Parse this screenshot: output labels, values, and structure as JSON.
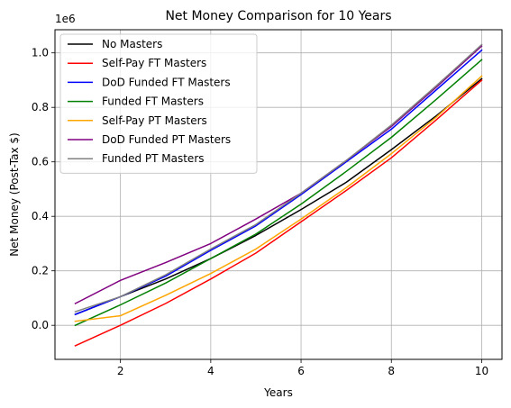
{
  "chart_data": {
    "type": "line",
    "title": "Net Money Comparison for 10 Years",
    "xlabel": "Years",
    "ylabel": "Net Money (Post-Tax $)",
    "y_offset_label": "1e6",
    "xlim": [
      0.55,
      10.45
    ],
    "ylim": [
      -0.125,
      1.085
    ],
    "x_scale": 1000000,
    "xticks": [
      2,
      4,
      6,
      8,
      10
    ],
    "xtick_labels": [
      "2",
      "4",
      "6",
      "8",
      "10"
    ],
    "yticks": [
      0.0,
      0.2,
      0.4,
      0.6,
      0.8,
      1.0
    ],
    "ytick_labels": [
      "0.0",
      "0.2",
      "0.4",
      "0.6",
      "0.8",
      "1.0"
    ],
    "grid": true,
    "legend_position": "upper-left",
    "x": [
      1,
      2,
      3,
      4,
      5,
      6,
      7,
      8,
      9,
      10
    ],
    "series": [
      {
        "name": "No Masters",
        "color": "#000000",
        "values": [
          0.04,
          0.105,
          0.17,
          0.245,
          0.33,
          0.425,
          0.525,
          0.645,
          0.77,
          0.905
        ]
      },
      {
        "name": "Self-Pay FT Masters",
        "color": "#ff0000",
        "values": [
          -0.075,
          0.0,
          0.08,
          0.17,
          0.265,
          0.38,
          0.495,
          0.615,
          0.755,
          0.9
        ]
      },
      {
        "name": "DoD Funded FT Masters",
        "color": "#0000ff",
        "values": [
          0.04,
          0.105,
          0.18,
          0.275,
          0.365,
          0.48,
          0.6,
          0.72,
          0.865,
          1.01
        ]
      },
      {
        "name": "Funded FT Masters",
        "color": "#008000",
        "values": [
          0.0,
          0.075,
          0.155,
          0.245,
          0.335,
          0.445,
          0.565,
          0.69,
          0.83,
          0.975
        ]
      },
      {
        "name": "Self-Pay PT Masters",
        "color": "#ffa500",
        "values": [
          0.015,
          0.035,
          0.11,
          0.19,
          0.28,
          0.39,
          0.505,
          0.63,
          0.765,
          0.915
        ]
      },
      {
        "name": "DoD Funded PT Masters",
        "color": "#800080",
        "values": [
          0.08,
          0.165,
          0.23,
          0.3,
          0.39,
          0.485,
          0.605,
          0.73,
          0.875,
          1.025
        ]
      },
      {
        "name": "Funded PT Masters",
        "color": "#808080",
        "values": [
          0.05,
          0.105,
          0.185,
          0.28,
          0.37,
          0.485,
          0.605,
          0.735,
          0.88,
          1.03
        ]
      }
    ]
  }
}
